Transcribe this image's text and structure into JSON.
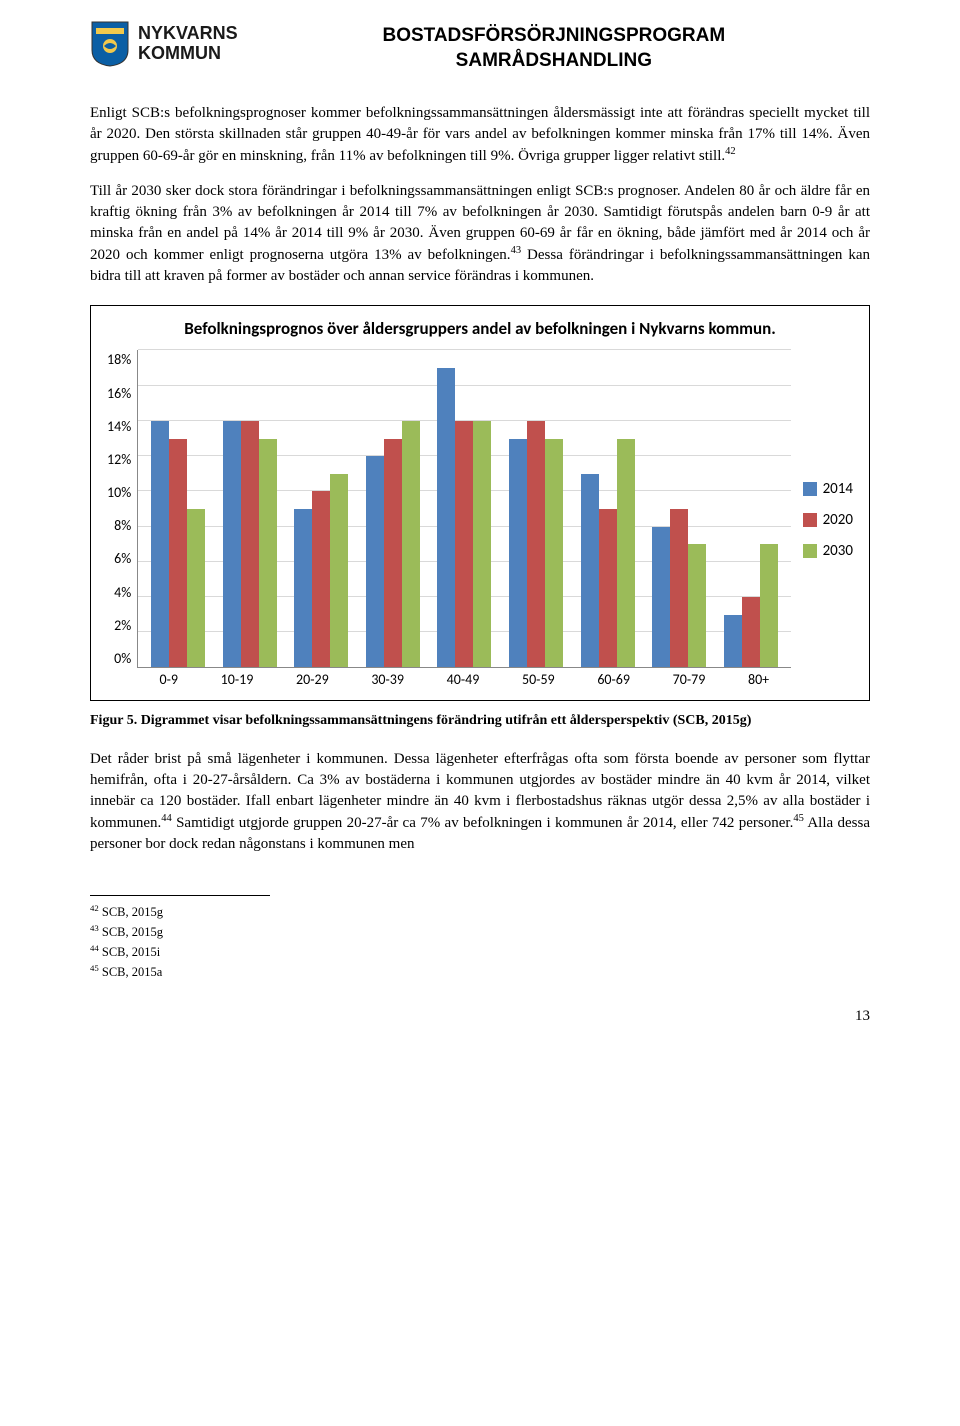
{
  "header": {
    "logo_line1": "NYKVARNS",
    "logo_line2": "KOMMUN",
    "title_line1": "BOSTADSFÖRSÖRJNINGSPROGRAM",
    "title_line2": "SAMRÅDSHANDLING"
  },
  "paragraphs": {
    "p1": "Enligt SCB:s befolkningsprognoser kommer befolkningssammansättningen åldersmässigt inte att förändras speciellt mycket till år 2020. Den största skillnaden står gruppen 40-49-år för vars andel av befolkningen kommer minska från 17% till 14%. Även gruppen 60-69-år gör en minskning, från 11% av befolkningen till 9%. Övriga grupper ligger relativt still.",
    "p1_sup": "42",
    "p2": "Till år 2030 sker dock stora förändringar i befolkningssammansättningen enligt SCB:s prognoser. Andelen 80 år och äldre får en kraftig ökning från 3% av befolkningen år 2014 till 7% av befolkningen år 2030. Samtidigt förutspås andelen barn 0-9 år att minska från en andel på 14% år 2014 till 9% år 2030. Även gruppen 60-69 år får en ökning, både jämfört med år 2014 och år 2020 och kommer enligt prognoserna utgöra 13% av befolkningen.",
    "p2_sup": "43",
    "p2b": " Dessa förändringar i befolkningssammansättningen kan bidra till att kraven på former av bostäder och annan service förändras i kommunen.",
    "p3a": "Det råder brist på små lägenheter i kommunen. Dessa lägenheter efterfrågas ofta som första boende av personer som flyttar hemifrån, ofta i 20-27-årsåldern. Ca 3% av bostäderna i kommunen utgjordes av bostäder mindre än 40 kvm år 2014, vilket innebär ca 120 bostäder. Ifall enbart lägenheter mindre än 40 kvm i flerbostadshus räknas utgör dessa 2,5% av alla bostäder i kommunen.",
    "p3_sup1": "44",
    "p3b": " Samtidigt utgjorde gruppen 20-27-år ca 7% av befolkningen i kommunen år 2014, eller 742 personer.",
    "p3_sup2": "45",
    "p3c": " Alla dessa personer bor dock redan någonstans i kommunen men"
  },
  "chart": {
    "title": "Befolkningsprognos över åldersgruppers andel av befolkningen i Nykvarns kommun.",
    "y_ticks": [
      "18%",
      "16%",
      "14%",
      "12%",
      "10%",
      "8%",
      "6%",
      "4%",
      "2%",
      "0%"
    ],
    "y_max": 18,
    "categories": [
      "0-9",
      "10-19",
      "20-29",
      "30-39",
      "40-49",
      "50-59",
      "60-69",
      "70-79",
      "80+"
    ],
    "series": [
      {
        "label": "2014",
        "color": "#4f81bd",
        "values": [
          14,
          14,
          9,
          12,
          17,
          13,
          11,
          8,
          3
        ]
      },
      {
        "label": "2020",
        "color": "#c0504d",
        "values": [
          13,
          14,
          10,
          13,
          14,
          14,
          9,
          9,
          4
        ]
      },
      {
        "label": "2030",
        "color": "#9bbb59",
        "values": [
          9,
          13,
          11,
          14,
          14,
          13,
          13,
          7,
          7
        ]
      }
    ]
  },
  "figure_caption": "Figur 5. Digrammet visar befolkningssammansättningens förändring utifrån ett åldersperspektiv (SCB, 2015g)",
  "footnotes": [
    {
      "num": "42",
      "text": "SCB, 2015g"
    },
    {
      "num": "43",
      "text": "SCB, 2015g"
    },
    {
      "num": "44",
      "text": "SCB, 2015i"
    },
    {
      "num": "45",
      "text": "SCB, 2015a"
    }
  ],
  "page_number": "13",
  "logo_colors": {
    "shield_blue": "#0b5fa5",
    "shield_yellow": "#f2c94c"
  }
}
